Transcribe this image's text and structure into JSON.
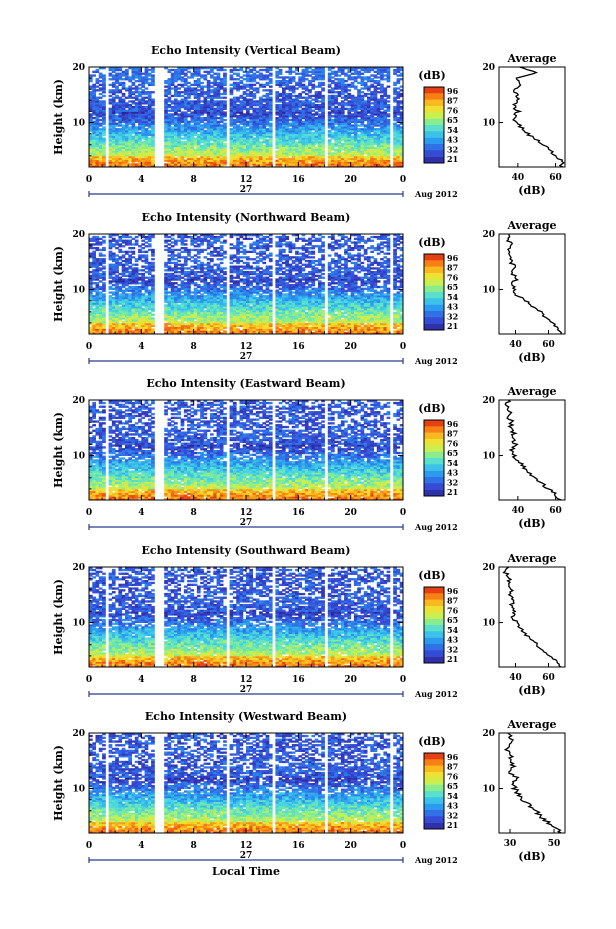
{
  "figure": {
    "x_label": "Local Time",
    "date_label": "Aug 2012",
    "day_label": "27",
    "colorbar_unit": "(dB)",
    "avg_title": "Average",
    "avg_xlabel": "(dB)",
    "y_label": "Height (km)"
  },
  "chart_data": [
    {
      "type": "heatmap",
      "title": "Echo Intensity (Vertical Beam)",
      "xlim": [
        0,
        24
      ],
      "xticks": [
        "0",
        "4",
        "8",
        "12",
        "16",
        "20",
        "0"
      ],
      "ylim": [
        2,
        20
      ],
      "yticks": [
        "10",
        "20"
      ],
      "colorbar_ticks": [
        "96",
        "87",
        "76",
        "65",
        "54",
        "43",
        "32",
        "21"
      ],
      "data_gaps_h": [
        [
          1.2,
          1.6
        ],
        [
          5.0,
          5.8
        ],
        [
          10.4,
          10.7
        ],
        [
          14.1,
          14.3
        ],
        [
          18.0,
          18.3
        ],
        [
          23.0,
          23.3
        ]
      ],
      "average_profile": {
        "xticks": [
          "40",
          "60"
        ],
        "xlim": [
          30,
          65
        ],
        "height": [
          2,
          3,
          4,
          5,
          6,
          7,
          8,
          9,
          10,
          11,
          12,
          13,
          14,
          15,
          16,
          17,
          18,
          19,
          20
        ],
        "db": [
          63,
          64,
          60,
          57,
          54,
          49,
          45,
          42,
          39,
          38,
          40,
          38,
          40,
          39,
          38,
          41,
          40,
          51,
          41
        ]
      }
    },
    {
      "type": "heatmap",
      "title": "Echo Intensity (Northward Beam)",
      "xlim": [
        0,
        24
      ],
      "xticks": [
        "0",
        "4",
        "8",
        "12",
        "16",
        "20",
        "0"
      ],
      "ylim": [
        2,
        20
      ],
      "yticks": [
        "10",
        "20"
      ],
      "colorbar_ticks": [
        "96",
        "87",
        "76",
        "65",
        "54",
        "43",
        "32",
        "21"
      ],
      "data_gaps_h": [
        [
          1.2,
          1.6
        ],
        [
          5.0,
          5.8
        ],
        [
          10.4,
          10.7
        ],
        [
          14.1,
          14.3
        ],
        [
          18.0,
          18.3
        ],
        [
          23.0,
          23.3
        ]
      ],
      "average_profile": {
        "xticks": [
          "40",
          "60"
        ],
        "xlim": [
          30,
          70
        ],
        "height": [
          2,
          3,
          4,
          5,
          6,
          7,
          8,
          9,
          10,
          11,
          12,
          13,
          14,
          15,
          16,
          17,
          18,
          19,
          20
        ],
        "db": [
          68,
          66,
          62,
          58,
          55,
          50,
          46,
          41,
          39,
          38,
          41,
          38,
          40,
          37,
          38,
          36,
          38,
          35,
          36
        ]
      }
    },
    {
      "type": "heatmap",
      "title": "Echo Intensity (Eastward Beam)",
      "xlim": [
        0,
        24
      ],
      "xticks": [
        "0",
        "4",
        "8",
        "12",
        "16",
        "20",
        "0"
      ],
      "ylim": [
        2,
        20
      ],
      "yticks": [
        "10",
        "20"
      ],
      "colorbar_ticks": [
        "96",
        "87",
        "76",
        "65",
        "54",
        "43",
        "32",
        "21"
      ],
      "data_gaps_h": [
        [
          1.2,
          1.6
        ],
        [
          5.0,
          5.8
        ],
        [
          10.4,
          10.7
        ],
        [
          14.1,
          14.3
        ],
        [
          18.0,
          18.3
        ],
        [
          23.0,
          23.3
        ]
      ],
      "average_profile": {
        "xticks": [
          "40",
          "60"
        ],
        "xlim": [
          30,
          65
        ],
        "height": [
          2,
          3,
          4,
          5,
          6,
          7,
          8,
          9,
          10,
          11,
          12,
          13,
          14,
          15,
          16,
          17,
          18,
          19,
          20
        ],
        "db": [
          62,
          60,
          56,
          53,
          49,
          46,
          43,
          40,
          38,
          37,
          39,
          37,
          38,
          36,
          37,
          35,
          36,
          34,
          35
        ]
      }
    },
    {
      "type": "heatmap",
      "title": "Echo Intensity (Southward Beam)",
      "xlim": [
        0,
        24
      ],
      "xticks": [
        "0",
        "4",
        "8",
        "12",
        "16",
        "20",
        "0"
      ],
      "ylim": [
        2,
        20
      ],
      "yticks": [
        "10",
        "20"
      ],
      "colorbar_ticks": [
        "96",
        "87",
        "76",
        "65",
        "54",
        "43",
        "32",
        "21"
      ],
      "data_gaps_h": [
        [
          1.2,
          1.6
        ],
        [
          5.0,
          5.8
        ],
        [
          10.4,
          10.7
        ],
        [
          14.1,
          14.3
        ],
        [
          18.0,
          18.3
        ],
        [
          23.0,
          23.3
        ]
      ],
      "average_profile": {
        "xticks": [
          "40",
          "60"
        ],
        "xlim": [
          30,
          70
        ],
        "height": [
          2,
          3,
          4,
          5,
          6,
          7,
          8,
          9,
          10,
          11,
          12,
          13,
          14,
          15,
          16,
          17,
          18,
          19,
          20
        ],
        "db": [
          68,
          65,
          60,
          56,
          53,
          49,
          46,
          43,
          41,
          38,
          40,
          37,
          39,
          36,
          38,
          35,
          37,
          34,
          36
        ]
      }
    },
    {
      "type": "heatmap",
      "title": "Echo Intensity (Westward Beam)",
      "xlim": [
        0,
        24
      ],
      "xticks": [
        "0",
        "4",
        "8",
        "12",
        "16",
        "20",
        "0"
      ],
      "ylim": [
        2,
        20
      ],
      "yticks": [
        "10",
        "20"
      ],
      "colorbar_ticks": [
        "96",
        "87",
        "76",
        "65",
        "54",
        "43",
        "32",
        "21"
      ],
      "data_gaps_h": [
        [
          1.2,
          1.6
        ],
        [
          5.0,
          5.8
        ],
        [
          10.4,
          10.7
        ],
        [
          14.1,
          14.3
        ],
        [
          18.0,
          18.3
        ],
        [
          23.0,
          23.3
        ]
      ],
      "average_profile": {
        "xticks": [
          "30",
          "50"
        ],
        "xlim": [
          25,
          55
        ],
        "height": [
          2,
          3,
          4,
          5,
          6,
          7,
          8,
          9,
          10,
          11,
          12,
          13,
          14,
          15,
          16,
          17,
          18,
          19,
          20
        ],
        "db": [
          53,
          51,
          47,
          44,
          42,
          39,
          36,
          34,
          32,
          31,
          33,
          30,
          32,
          30,
          31,
          29,
          31,
          30,
          29
        ]
      }
    }
  ]
}
